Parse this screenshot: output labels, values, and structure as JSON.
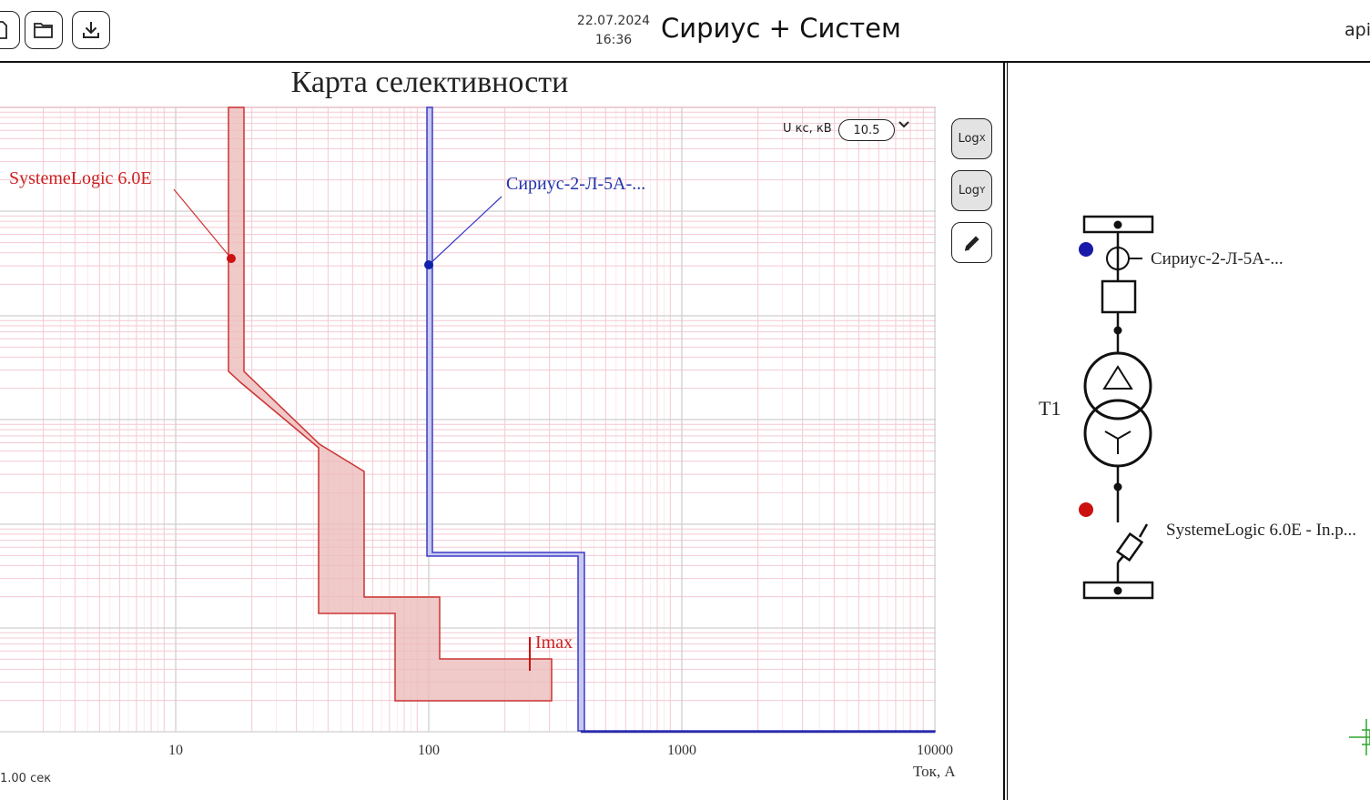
{
  "header": {
    "date": "22.07.2024",
    "time": "16:36",
    "title": "Сириус + Систем",
    "user": "api"
  },
  "chart": {
    "title": "Карта селективности",
    "x_unit": "Ток, А",
    "status": "1.00 сек",
    "voltage_label": "U кс, кВ",
    "voltage_value": "10.5",
    "log_x": "Log",
    "log_x_sub": "X",
    "log_y": "Log",
    "log_y_sub": "Y"
  },
  "chart_data": {
    "type": "line",
    "title": "Карта селективности",
    "xlabel": "Ток, А",
    "x_scale": "log",
    "x_ticks": [
      "10",
      "100",
      "1000",
      "10000"
    ],
    "series": [
      {
        "name": "SystemeLogic 6.0E",
        "color": "#cc3333",
        "style": "band",
        "label_point": 16.5
      },
      {
        "name": "Сириус-2-Л-5А-...",
        "color": "#3333bb",
        "style": "band",
        "label_point": 100
      }
    ],
    "annotations": [
      {
        "text": "Imax",
        "x": 250,
        "color": "#cc2222"
      }
    ]
  },
  "scheme": {
    "transformer_label": "T1",
    "device_top_label": "Сириус-2-Л-5А-...",
    "device_bottom_label": "SystemeLogic 6.0E - In.p..."
  },
  "colors": {
    "red": "#cc2222",
    "blue": "#2233aa",
    "red_fill": "#ecbcbc",
    "blue_line": "#3b3bc9"
  }
}
